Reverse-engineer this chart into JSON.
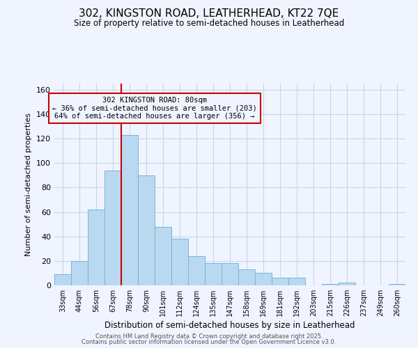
{
  "title": "302, KINGSTON ROAD, LEATHERHEAD, KT22 7QE",
  "subtitle": "Size of property relative to semi-detached houses in Leatherhead",
  "xlabel": "Distribution of semi-detached houses by size in Leatherhead",
  "ylabel": "Number of semi-detached properties",
  "categories": [
    "33sqm",
    "44sqm",
    "56sqm",
    "67sqm",
    "78sqm",
    "90sqm",
    "101sqm",
    "112sqm",
    "124sqm",
    "135sqm",
    "147sqm",
    "158sqm",
    "169sqm",
    "181sqm",
    "192sqm",
    "203sqm",
    "215sqm",
    "226sqm",
    "237sqm",
    "249sqm",
    "260sqm"
  ],
  "values": [
    9,
    20,
    62,
    94,
    123,
    90,
    48,
    38,
    24,
    18,
    18,
    13,
    10,
    6,
    6,
    0,
    1,
    2,
    0,
    0,
    1
  ],
  "bar_color": "#b8d9f0",
  "bar_edge_color": "#7ab4d8",
  "highlight_line_color": "#cc0000",
  "annotation_title": "302 KINGSTON ROAD: 80sqm",
  "annotation_line1": "← 36% of semi-detached houses are smaller (203)",
  "annotation_line2": "64% of semi-detached houses are larger (356) →",
  "annotation_box_edge": "#cc0000",
  "ylim": [
    0,
    165
  ],
  "yticks": [
    0,
    20,
    40,
    60,
    80,
    100,
    120,
    140,
    160
  ],
  "footer1": "Contains HM Land Registry data © Crown copyright and database right 2025.",
  "footer2": "Contains public sector information licensed under the Open Government Licence v3.0.",
  "background_color": "#f0f4ff",
  "grid_color": "#c8d4ec"
}
